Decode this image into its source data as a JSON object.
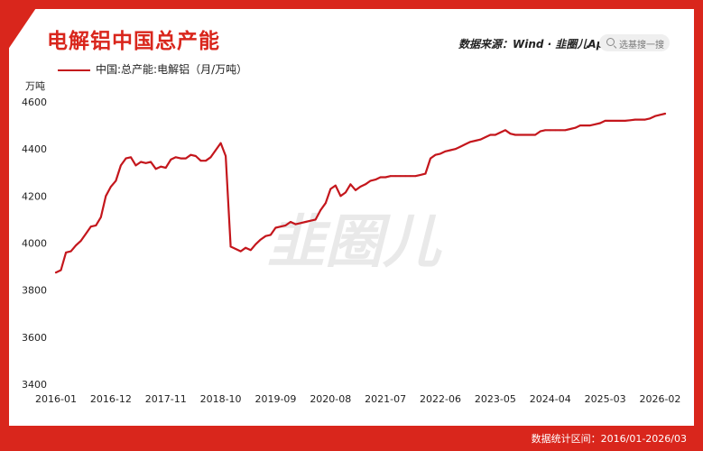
{
  "header": {
    "title": "电解铝中国总产能",
    "source": "数据来源：Wind · 韭圈儿App",
    "search_placeholder": "选基搜一搜",
    "watermark": "韭圈儿"
  },
  "footer": {
    "range": "数据统计区间：2016/01-2026/03"
  },
  "colors": {
    "brand": "#d9261c",
    "line": "#c4161c",
    "background": "#ffffff"
  },
  "chart_data": {
    "type": "line",
    "title": "电解铝中国总产能",
    "ylabel": "万吨",
    "xlabel": "",
    "ylim": [
      3400,
      4600
    ],
    "yticks": [
      "4600",
      "4400",
      "4200",
      "4000",
      "3800",
      "3600",
      "3400"
    ],
    "xticks": [
      "2016-01",
      "2016-12",
      "2017-11",
      "2018-10",
      "2019-09",
      "2020-08",
      "2021-07",
      "2022-06",
      "2023-05",
      "2024-04",
      "2025-03",
      "2026-02"
    ],
    "grid": false,
    "legend_position": "top-left",
    "series": [
      {
        "name": "中国:总产能:电解铝（月/万吨）",
        "x": [
          "2016-01",
          "2016-02",
          "2016-03",
          "2016-04",
          "2016-05",
          "2016-06",
          "2016-07",
          "2016-08",
          "2016-09",
          "2016-10",
          "2016-11",
          "2016-12",
          "2017-01",
          "2017-02",
          "2017-03",
          "2017-04",
          "2017-05",
          "2017-06",
          "2017-07",
          "2017-08",
          "2017-09",
          "2017-10",
          "2017-11",
          "2017-12",
          "2018-01",
          "2018-02",
          "2018-03",
          "2018-04",
          "2018-05",
          "2018-06",
          "2018-07",
          "2018-08",
          "2018-09",
          "2018-10",
          "2018-11",
          "2018-12",
          "2019-01",
          "2019-02",
          "2019-03",
          "2019-04",
          "2019-05",
          "2019-06",
          "2019-07",
          "2019-08",
          "2019-09",
          "2019-10",
          "2019-11",
          "2019-12",
          "2020-01",
          "2020-02",
          "2020-03",
          "2020-04",
          "2020-05",
          "2020-06",
          "2020-07",
          "2020-08",
          "2020-09",
          "2020-10",
          "2020-11",
          "2020-12",
          "2021-01",
          "2021-02",
          "2021-03",
          "2021-04",
          "2021-05",
          "2021-06",
          "2021-07",
          "2021-08",
          "2021-09",
          "2021-10",
          "2021-11",
          "2021-12",
          "2022-01",
          "2022-02",
          "2022-03",
          "2022-04",
          "2022-05",
          "2022-06",
          "2022-07",
          "2022-08",
          "2022-09",
          "2022-10",
          "2022-11",
          "2022-12",
          "2023-01",
          "2023-02",
          "2023-03",
          "2023-04",
          "2023-05",
          "2023-06",
          "2023-07",
          "2023-08",
          "2023-09",
          "2023-10",
          "2023-11",
          "2023-12",
          "2024-01",
          "2024-02",
          "2024-03",
          "2024-04",
          "2024-05",
          "2024-06",
          "2024-07",
          "2024-08",
          "2024-09",
          "2024-10",
          "2024-11",
          "2024-12",
          "2025-01",
          "2025-02",
          "2025-03",
          "2025-04",
          "2025-05",
          "2025-06",
          "2025-07",
          "2025-08",
          "2025-09",
          "2025-10",
          "2025-11",
          "2025-12",
          "2026-01",
          "2026-02",
          "2026-03"
        ],
        "values": [
          3875,
          3885,
          3960,
          3965,
          3990,
          4010,
          4040,
          4070,
          4075,
          4110,
          4200,
          4240,
          4265,
          4330,
          4360,
          4365,
          4330,
          4345,
          4340,
          4345,
          4315,
          4325,
          4320,
          4355,
          4365,
          4360,
          4360,
          4375,
          4370,
          4350,
          4350,
          4365,
          4395,
          4425,
          4370,
          3985,
          3975,
          3965,
          3980,
          3970,
          3995,
          4015,
          4030,
          4035,
          4065,
          4070,
          4075,
          4090,
          4080,
          4085,
          4090,
          4095,
          4100,
          4140,
          4170,
          4230,
          4245,
          4200,
          4215,
          4250,
          4225,
          4240,
          4250,
          4265,
          4270,
          4280,
          4280,
          4285,
          4285,
          4285,
          4285,
          4285,
          4285,
          4290,
          4295,
          4360,
          4375,
          4380,
          4390,
          4395,
          4400,
          4410,
          4420,
          4430,
          4435,
          4440,
          4450,
          4460,
          4460,
          4470,
          4480,
          4465,
          4460,
          4460,
          4460,
          4460,
          4460,
          4475,
          4480,
          4480,
          4480,
          4480,
          4480,
          4485,
          4490,
          4500,
          4500,
          4500,
          4505,
          4510,
          4520,
          4520,
          4520,
          4520,
          4520,
          4522,
          4525,
          4525,
          4525,
          4530,
          4540,
          4545,
          4550
        ]
      }
    ]
  }
}
